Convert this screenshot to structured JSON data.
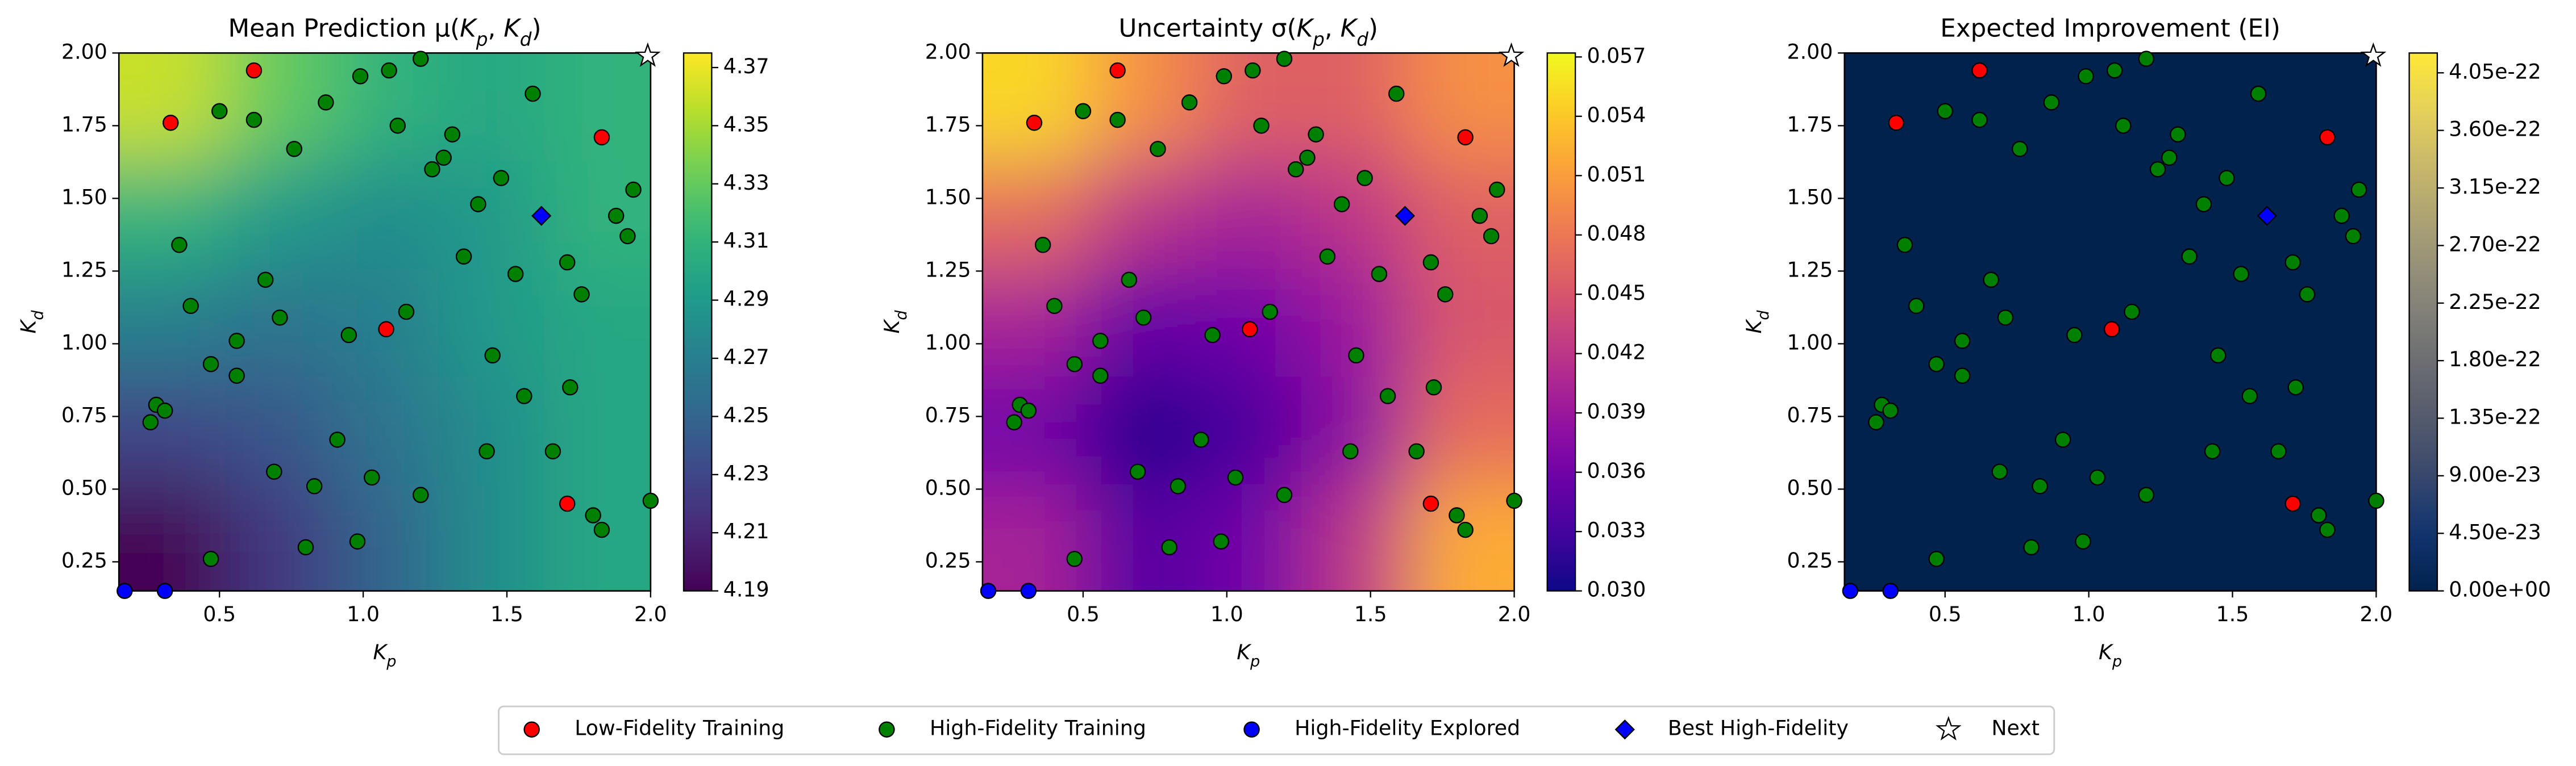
{
  "chart_data": [
    {
      "type": "heatmap",
      "title": "Mean Prediction μ(K_p, K_d)",
      "xlabel": "K_p",
      "ylabel": "K_d",
      "xlim": [
        0.15,
        2.0
      ],
      "ylim": [
        0.15,
        2.0
      ],
      "xticks": [
        0.5,
        {
          "value": 1,
          "label": "1.0"
        },
        1.5,
        {
          "value": 2,
          "label": "2.0"
        }
      ],
      "yticks": [
        0.25,
        {
          "value": 0.5,
          "label": "0.50"
        },
        0.75,
        {
          "value": 1,
          "label": "1.00"
        },
        1.25,
        {
          "value": 1.5,
          "label": "1.50"
        },
        1.75,
        {
          "value": 2,
          "label": "2.00"
        }
      ],
      "colormap": "viridis",
      "clim": [
        4.19,
        4.375
      ],
      "cticks": [
        4.19,
        4.21,
        4.23,
        4.25,
        4.27,
        4.29,
        4.31,
        4.33,
        4.35,
        4.37
      ],
      "field": {
        "x": [
          0.335,
          0.705,
          1.075,
          1.445,
          1.815
        ],
        "y": [
          0.335,
          0.705,
          1.075,
          1.445,
          1.815
        ],
        "z": [
          [
            4.19,
            4.22,
            4.25,
            4.28,
            4.3
          ],
          [
            4.23,
            4.24,
            4.26,
            4.28,
            4.3
          ],
          [
            4.27,
            4.26,
            4.27,
            4.29,
            4.3
          ],
          [
            4.31,
            4.29,
            4.28,
            4.29,
            4.31
          ],
          [
            4.36,
            4.33,
            4.31,
            4.3,
            4.31
          ]
        ]
      }
    },
    {
      "type": "heatmap",
      "title": "Uncertainty σ(K_p, K_d)",
      "xlabel": "K_p",
      "ylabel": "K_d",
      "xlim": [
        0.15,
        2.0
      ],
      "ylim": [
        0.15,
        2.0
      ],
      "xticks": [
        0.5,
        {
          "value": 1,
          "label": "1.0"
        },
        1.5,
        {
          "value": 2,
          "label": "2.0"
        }
      ],
      "yticks": [
        0.25,
        {
          "value": 0.5,
          "label": "0.50"
        },
        0.75,
        {
          "value": 1,
          "label": "1.00"
        },
        1.25,
        {
          "value": 1.5,
          "label": "1.50"
        },
        1.75,
        {
          "value": 2,
          "label": "2.00"
        }
      ],
      "colormap": "plasma",
      "clim": [
        0.03,
        0.0572
      ],
      "cticks": [
        {
          "value": 0.03,
          "label": "0.030"
        },
        0.033,
        0.036,
        0.039,
        0.042,
        0.045,
        0.048,
        0.051,
        0.054,
        0.057
      ],
      "field": {
        "x": [
          0.335,
          0.705,
          1.075,
          1.445,
          1.815
        ],
        "y": [
          0.335,
          0.705,
          1.075,
          1.445,
          1.815
        ],
        "z": [
          [
            0.04,
            0.034,
            0.036,
            0.042,
            0.052
          ],
          [
            0.036,
            0.031,
            0.033,
            0.038,
            0.047
          ],
          [
            0.04,
            0.035,
            0.036,
            0.039,
            0.045
          ],
          [
            0.047,
            0.042,
            0.04,
            0.042,
            0.046
          ],
          [
            0.055,
            0.05,
            0.046,
            0.046,
            0.05
          ]
        ]
      }
    },
    {
      "type": "heatmap",
      "title": "Expected Improvement (EI)",
      "xlabel": "K_p",
      "ylabel": "K_d",
      "xlim": [
        0.15,
        2.0
      ],
      "ylim": [
        0.15,
        2.0
      ],
      "xticks": [
        0.5,
        {
          "value": 1,
          "label": "1.0"
        },
        1.5,
        {
          "value": 2,
          "label": "2.0"
        }
      ],
      "yticks": [
        0.25,
        {
          "value": 0.5,
          "label": "0.50"
        },
        0.75,
        {
          "value": 1,
          "label": "1.00"
        },
        1.25,
        {
          "value": 1.5,
          "label": "1.50"
        },
        1.75,
        {
          "value": 2,
          "label": "2.00"
        }
      ],
      "colormap": "cividis",
      "clim": [
        0,
        4.205e-22
      ],
      "cticks": [
        {
          "value": 0,
          "label": "0.00e+00"
        },
        {
          "value": 4.5e-23,
          "label": "4.50e-23"
        },
        {
          "value": 9e-23,
          "label": "9.00e-23"
        },
        {
          "value": 1.35e-22,
          "label": "1.35e-22"
        },
        {
          "value": 1.8e-22,
          "label": "1.80e-22"
        },
        {
          "value": 2.25e-22,
          "label": "2.25e-22"
        },
        {
          "value": 2.7e-22,
          "label": "2.70e-22"
        },
        {
          "value": 3.15e-22,
          "label": "3.15e-22"
        },
        {
          "value": 3.6e-22,
          "label": "3.60e-22"
        },
        {
          "value": 4.05e-22,
          "label": "4.05e-22"
        }
      ],
      "field": {
        "x": [
          0.335,
          0.705,
          1.075,
          1.445,
          1.815
        ],
        "y": [
          0.335,
          0.705,
          1.075,
          1.445,
          1.815
        ],
        "z": [
          [
            0,
            0,
            0,
            0,
            0
          ],
          [
            0,
            0,
            0,
            0,
            0
          ],
          [
            0,
            0,
            0,
            0,
            0
          ],
          [
            0,
            0,
            0,
            0,
            0
          ],
          [
            0,
            0,
            0,
            0,
            0
          ]
        ]
      }
    }
  ],
  "points": {
    "series": [
      {
        "name": "Low-Fidelity Training",
        "color": "#ff0000",
        "marker": "circle",
        "x": [
          0.33,
          0.62,
          1.83,
          1.08,
          1.71
        ],
        "y": [
          1.76,
          1.94,
          1.71,
          1.05,
          0.45
        ]
      },
      {
        "name": "High-Fidelity Training",
        "color": "#008000",
        "marker": "circle",
        "x": [
          0.62,
          0.5,
          0.87,
          0.99,
          1.09,
          1.2,
          1.12,
          0.76,
          1.31,
          1.28,
          1.24,
          1.48,
          1.59,
          1.94,
          1.88,
          1.92,
          1.4,
          1.35,
          0.36,
          0.4,
          0.66,
          0.71,
          0.95,
          1.15,
          1.53,
          1.71,
          1.76,
          1.45,
          0.56,
          0.47,
          0.56,
          1.56,
          1.72,
          0.28,
          0.31,
          0.26,
          0.91,
          1.43,
          1.66,
          0.69,
          0.83,
          1.03,
          1.2,
          0.8,
          0.98,
          0.47,
          1.8,
          1.83,
          2.0
        ],
        "y": [
          1.77,
          1.8,
          1.83,
          1.92,
          1.94,
          1.98,
          1.75,
          1.67,
          1.72,
          1.64,
          1.6,
          1.57,
          1.86,
          1.53,
          1.44,
          1.37,
          1.48,
          1.3,
          1.34,
          1.13,
          1.22,
          1.09,
          1.03,
          1.11,
          1.24,
          1.28,
          1.17,
          0.96,
          1.01,
          0.93,
          0.89,
          0.82,
          0.85,
          0.79,
          0.77,
          0.73,
          0.67,
          0.63,
          0.63,
          0.56,
          0.51,
          0.54,
          0.48,
          0.3,
          0.32,
          0.26,
          0.41,
          0.36,
          0.46
        ]
      },
      {
        "name": "High-Fidelity Explored",
        "color": "#0000ff",
        "marker": "circle",
        "x": [
          0.17,
          0.31
        ],
        "y": [
          0.15,
          0.15
        ]
      },
      {
        "name": "Best High-Fidelity",
        "color": "#0000ff",
        "marker": "diamond",
        "x": [
          1.62
        ],
        "y": [
          1.44
        ]
      },
      {
        "name": "Next",
        "color": "#ffffff",
        "marker": "star",
        "x": [
          1.99
        ],
        "y": [
          1.99
        ]
      }
    ]
  }
}
